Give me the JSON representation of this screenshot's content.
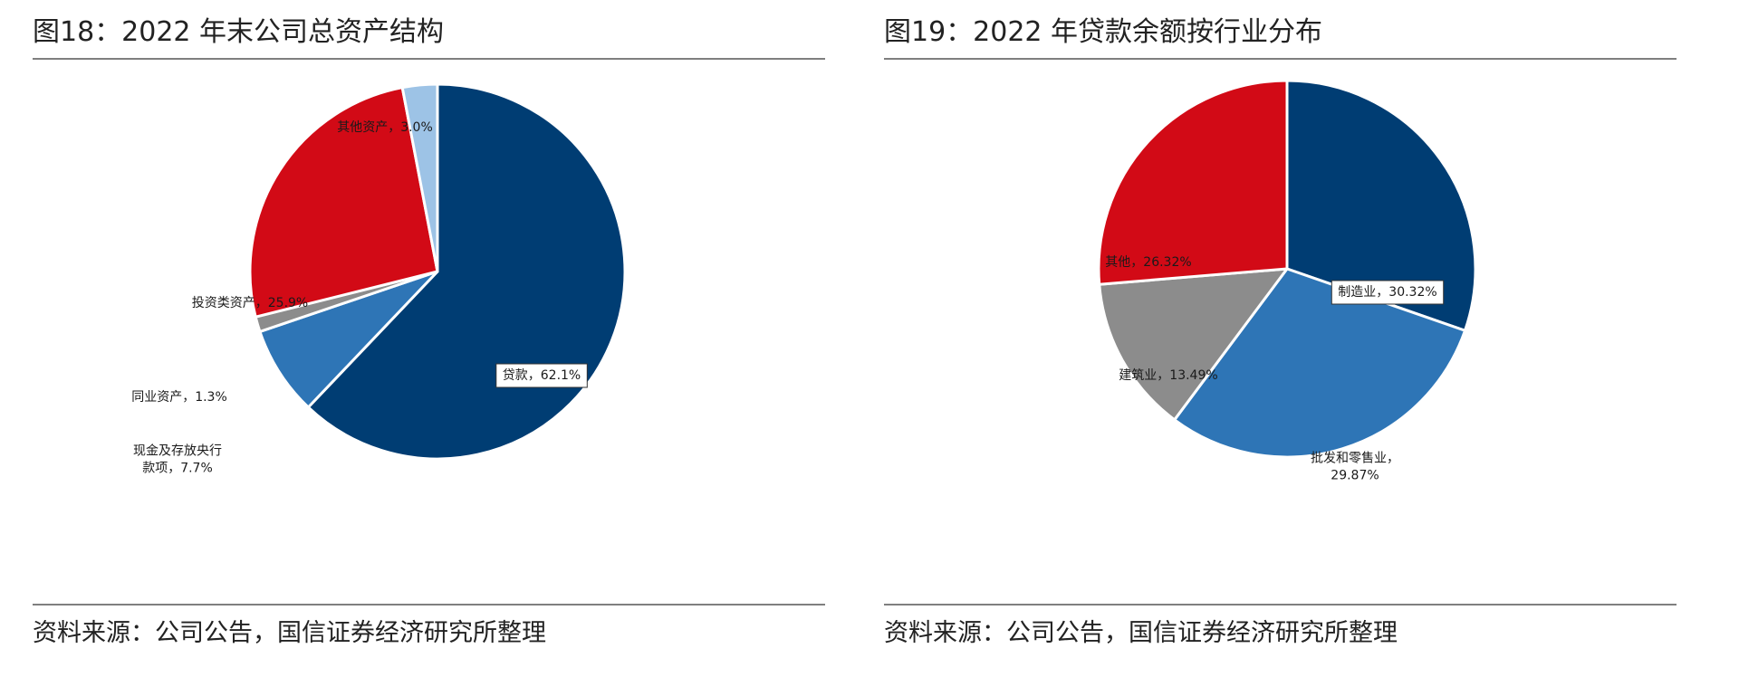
{
  "panels": {
    "left": {
      "title": "图18：2022 年末公司总资产结构",
      "source": "资料来源：公司公告，国信证券经济研究所整理"
    },
    "right": {
      "title": "图19：2022 年贷款余额按行业分布",
      "source": "资料来源：公司公告，国信证券经济研究所整理"
    }
  },
  "chart_data": [
    {
      "type": "pie",
      "title": "图18：2022 年末公司总资产结构",
      "slices": [
        {
          "label": "贷款，62.1%",
          "value": 62.1,
          "color": "#003d73"
        },
        {
          "label": "现金及存放央行款项，7.7%",
          "value": 7.7,
          "color": "#2e75b6"
        },
        {
          "label": "同业资产，1.3%",
          "value": 1.3,
          "color": "#8c8c8c"
        },
        {
          "label": "投资类资产，25.9%",
          "value": 25.9,
          "color": "#d20a16"
        },
        {
          "label": "其他资产，3.0%",
          "value": 3.0,
          "color": "#9dc3e6"
        }
      ]
    },
    {
      "type": "pie",
      "title": "图19：2022 年贷款余额按行业分布",
      "slices": [
        {
          "label": "制造业，30.32%",
          "value": 30.32,
          "color": "#003d73"
        },
        {
          "label": "批发和零售业，29.87%",
          "value": 29.87,
          "color": "#2e75b6"
        },
        {
          "label": "建筑业，13.49%",
          "value": 13.49,
          "color": "#8c8c8c"
        },
        {
          "label": "其他，26.32%",
          "value": 26.32,
          "color": "#d20a16"
        }
      ]
    }
  ]
}
